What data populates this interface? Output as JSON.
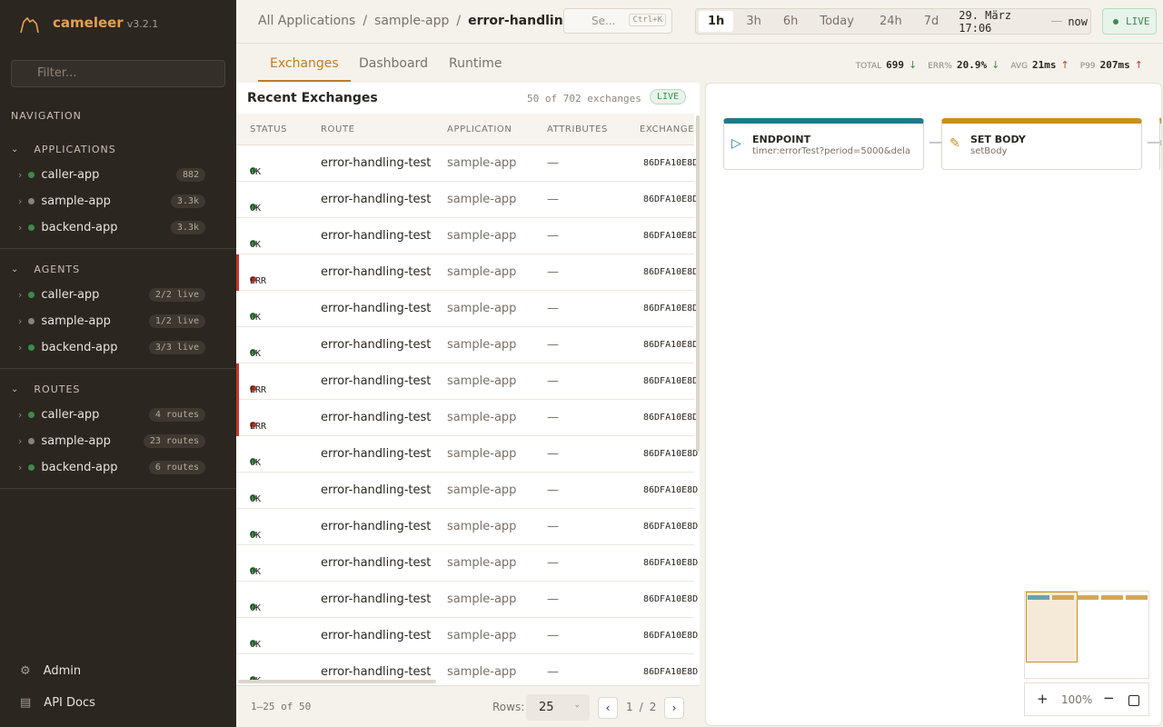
{
  "sidebar": {
    "brand": "cameleer",
    "version": "v3.2.1",
    "filter_placeholder": "Filter...",
    "nav_title": "NAVIGATION",
    "sections": [
      {
        "title": "APPLICATIONS",
        "items": [
          {
            "name": "caller-app",
            "badge": "882",
            "status": "live"
          },
          {
            "name": "sample-app",
            "badge": "3.3k",
            "status": "idle"
          },
          {
            "name": "backend-app",
            "badge": "3.3k",
            "status": "live"
          }
        ]
      },
      {
        "title": "AGENTS",
        "items": [
          {
            "name": "caller-app",
            "badge": "2/2 live",
            "status": "live"
          },
          {
            "name": "sample-app",
            "badge": "1/2 live",
            "status": "idle"
          },
          {
            "name": "backend-app",
            "badge": "3/3 live",
            "status": "live"
          }
        ]
      },
      {
        "title": "ROUTES",
        "items": [
          {
            "name": "caller-app",
            "badge": "4 routes",
            "status": "live"
          },
          {
            "name": "sample-app",
            "badge": "23 routes",
            "status": "idle"
          },
          {
            "name": "backend-app",
            "badge": "6 routes",
            "status": "live"
          }
        ]
      }
    ],
    "footer": [
      "Admin",
      "API Docs"
    ]
  },
  "topbar": {
    "breadcrumb": [
      "All Applications",
      "sample-app",
      "error-handling-test"
    ],
    "search_placeholder": "Se...",
    "search_shortcut": "Ctrl+K",
    "time_ranges": [
      "1h",
      "3h",
      "6h",
      "Today",
      "24h",
      "7d"
    ],
    "active_range": 0,
    "range_start": "29. März 17:06",
    "range_sep": "—",
    "range_end": "now",
    "live": "LIVE"
  },
  "tabs": {
    "items": [
      "Exchanges",
      "Dashboard",
      "Runtime"
    ],
    "active": 0
  },
  "stats": [
    {
      "label": "TOTAL",
      "value": "699",
      "trend": "down"
    },
    {
      "label": "ERR%",
      "value": "20.9%",
      "trend": "down"
    },
    {
      "label": "AVG",
      "value": "21ms",
      "trend": "up"
    },
    {
      "label": "P99",
      "value": "207ms",
      "trend": "up"
    }
  ],
  "table": {
    "title": "Recent Exchanges",
    "count": "50 of 702 exchanges",
    "live": "LIVE",
    "columns": [
      "STATUS",
      "ROUTE",
      "APPLICATION",
      "ATTRIBUTES",
      "EXCHANGE"
    ],
    "rows": [
      [
        "OK",
        "error-handling-test",
        "sample-app",
        "—",
        "86DFA10E8D"
      ],
      [
        "OK",
        "error-handling-test",
        "sample-app",
        "—",
        "86DFA10E8D"
      ],
      [
        "OK",
        "error-handling-test",
        "sample-app",
        "—",
        "86DFA10E8D"
      ],
      [
        "ERR",
        "error-handling-test",
        "sample-app",
        "—",
        "86DFA10E8D"
      ],
      [
        "OK",
        "error-handling-test",
        "sample-app",
        "—",
        "86DFA10E8D"
      ],
      [
        "OK",
        "error-handling-test",
        "sample-app",
        "—",
        "86DFA10E8D"
      ],
      [
        "ERR",
        "error-handling-test",
        "sample-app",
        "—",
        "86DFA10E8D"
      ],
      [
        "ERR",
        "error-handling-test",
        "sample-app",
        "—",
        "86DFA10E8D"
      ],
      [
        "OK",
        "error-handling-test",
        "sample-app",
        "—",
        "86DFA10E8D"
      ],
      [
        "OK",
        "error-handling-test",
        "sample-app",
        "—",
        "86DFA10E8D"
      ],
      [
        "OK",
        "error-handling-test",
        "sample-app",
        "—",
        "86DFA10E8D"
      ],
      [
        "OK",
        "error-handling-test",
        "sample-app",
        "—",
        "86DFA10E8D"
      ],
      [
        "OK",
        "error-handling-test",
        "sample-app",
        "—",
        "86DFA10E8D"
      ],
      [
        "OK",
        "error-handling-test",
        "sample-app",
        "—",
        "86DFA10E8D"
      ],
      [
        "OK",
        "error-handling-test",
        "sample-app",
        "—",
        "86DFA10E8D"
      ]
    ],
    "range": "1–25 of 50",
    "rows_label": "Rows:",
    "rows_value": "25",
    "page": "1",
    "page_sep": "/",
    "pages": "2"
  },
  "diagram": {
    "nodes": [
      {
        "title": "ENDPOINT",
        "detail": "timer:errorTest?period=5000&dela",
        "color": "#1f7a8c"
      },
      {
        "title": "SET BODY",
        "detail": "setBody",
        "color": "#c8901e"
      }
    ],
    "zoom": "100%"
  }
}
